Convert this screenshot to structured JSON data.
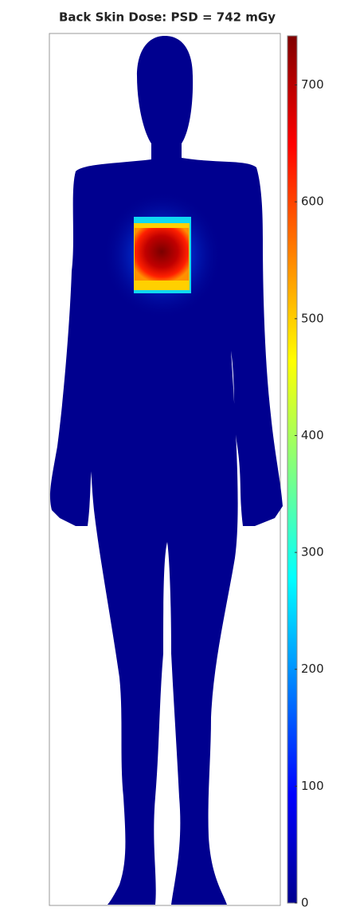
{
  "chart_data": {
    "type": "dose-map",
    "title": "Back Skin Dose: PSD = 742 mGy",
    "colormap": "jet",
    "clim": [
      0,
      742
    ],
    "cticks": [
      0,
      100,
      200,
      300,
      400,
      500,
      600,
      700
    ]
  }
}
